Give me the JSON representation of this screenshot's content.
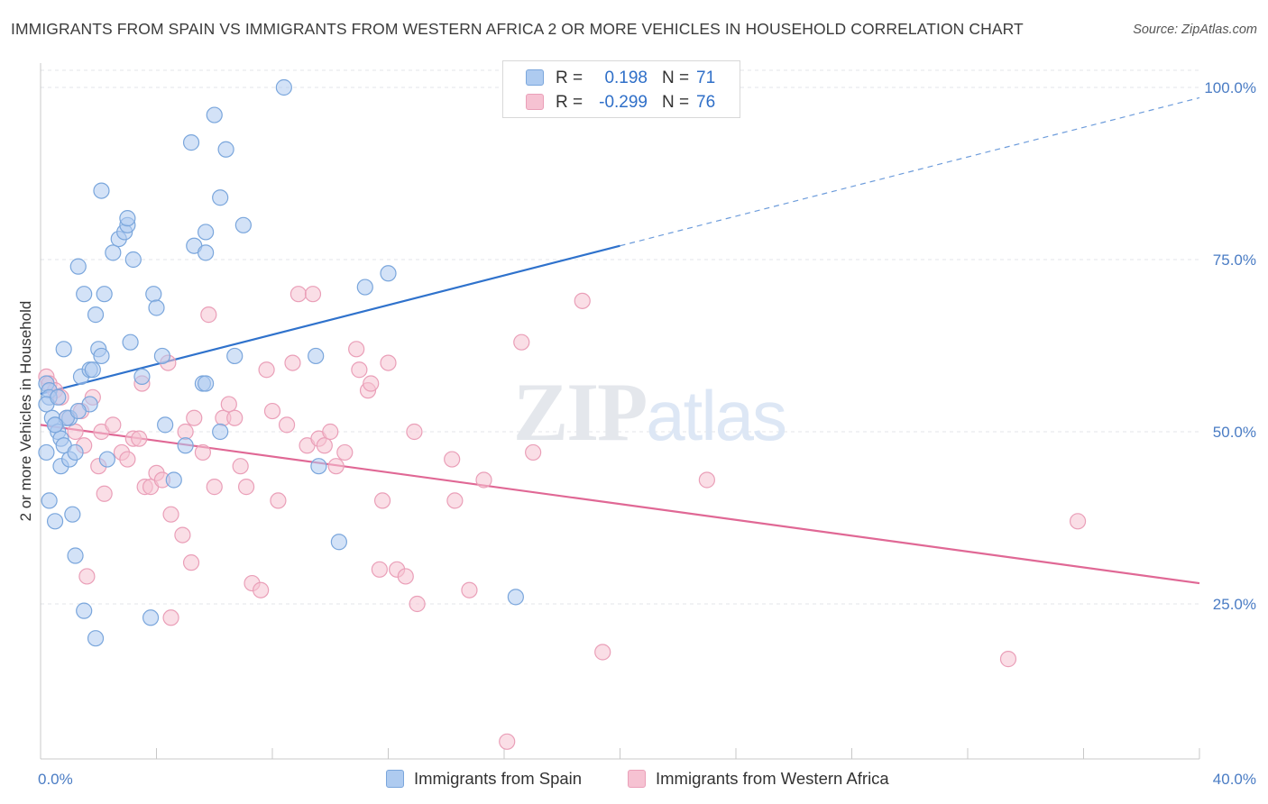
{
  "title": "IMMIGRANTS FROM SPAIN VS IMMIGRANTS FROM WESTERN AFRICA 2 OR MORE VEHICLES IN HOUSEHOLD CORRELATION CHART",
  "source": "Source: ZipAtlas.com",
  "watermark": "ZIPatlas",
  "legend_top": {
    "rows": [
      {
        "r_label": "R =",
        "r_value": "0.198",
        "n_label": "N =",
        "n_value": "71"
      },
      {
        "r_label": "R =",
        "r_value": "-0.299",
        "n_label": "N =",
        "n_value": "76"
      }
    ]
  },
  "legend_bottom": {
    "spain": "Immigrants from Spain",
    "wafrica": "Immigrants from Western Africa"
  },
  "colors": {
    "spain_fill": "#aecbf0",
    "spain_stroke": "#7aa6dc",
    "spain_line": "#2f72cc",
    "wafrica_fill": "#f6c2d2",
    "wafrica_stroke": "#ea9fb8",
    "wafrica_line": "#e06895",
    "axis_text": "#4a7cc4"
  },
  "chart_data": {
    "type": "scatter",
    "ylabel": "2 or more Vehicles in Household",
    "xlim": [
      0,
      40
    ],
    "ylim": [
      0,
      105
    ],
    "x_tick_labels": [
      {
        "x": 0,
        "label": "0.0%"
      },
      {
        "x": 40,
        "label": "40.0%"
      }
    ],
    "y_tick_labels": [
      {
        "y": 25,
        "label": "25.0%"
      },
      {
        "y": 50,
        "label": "50.0%"
      },
      {
        "y": 75,
        "label": "75.0%"
      },
      {
        "y": 100,
        "label": "100.0%"
      }
    ],
    "grid": true,
    "series": [
      {
        "name": "Immigrants from Spain",
        "r": 0.198,
        "n": 71,
        "trend": {
          "x0": 0,
          "y0": 55.5,
          "x1": 20,
          "y1": 77.0,
          "x_dash_end": 40,
          "y_dash_end": 98.5
        },
        "points": [
          [
            0.2,
            57
          ],
          [
            0.3,
            56
          ],
          [
            0.3,
            55
          ],
          [
            0.2,
            54
          ],
          [
            0.4,
            52
          ],
          [
            0.5,
            51
          ],
          [
            0.6,
            50
          ],
          [
            0.7,
            49
          ],
          [
            0.2,
            47
          ],
          [
            0.3,
            40
          ],
          [
            0.5,
            37
          ],
          [
            0.7,
            45
          ],
          [
            0.8,
            48
          ],
          [
            1.0,
            46
          ],
          [
            1.1,
            38
          ],
          [
            1.2,
            32
          ],
          [
            1.5,
            24
          ],
          [
            1.9,
            20
          ],
          [
            0.8,
            62
          ],
          [
            1.4,
            58
          ],
          [
            1.7,
            59
          ],
          [
            1.8,
            59
          ],
          [
            2.0,
            62
          ],
          [
            2.1,
            61
          ],
          [
            1.3,
            74
          ],
          [
            1.5,
            70
          ],
          [
            1.9,
            67
          ],
          [
            2.2,
            70
          ],
          [
            2.1,
            85
          ],
          [
            2.5,
            76
          ],
          [
            2.7,
            78
          ],
          [
            2.9,
            79
          ],
          [
            3.0,
            80
          ],
          [
            3.0,
            81
          ],
          [
            3.2,
            75
          ],
          [
            3.1,
            63
          ],
          [
            3.5,
            58
          ],
          [
            3.9,
            70
          ],
          [
            4.0,
            68
          ],
          [
            4.2,
            61
          ],
          [
            4.3,
            51
          ],
          [
            4.6,
            43
          ],
          [
            5.2,
            92
          ],
          [
            5.3,
            77
          ],
          [
            5.6,
            57
          ],
          [
            5.7,
            79
          ],
          [
            5.7,
            76
          ],
          [
            6.0,
            96
          ],
          [
            6.2,
            84
          ],
          [
            6.4,
            91
          ],
          [
            6.7,
            61
          ],
          [
            7.0,
            80
          ],
          [
            6.2,
            50
          ],
          [
            5.7,
            57
          ],
          [
            5.0,
            48
          ],
          [
            8.4,
            100
          ],
          [
            9.5,
            61
          ],
          [
            9.6,
            45
          ],
          [
            10.3,
            34
          ],
          [
            11.2,
            71
          ],
          [
            12.0,
            73
          ],
          [
            16.4,
            26
          ],
          [
            3.8,
            23
          ],
          [
            1.2,
            47
          ],
          [
            1.7,
            54
          ],
          [
            1.0,
            52
          ],
          [
            2.3,
            46
          ],
          [
            0.9,
            52
          ],
          [
            1.3,
            53
          ],
          [
            0.6,
            55
          ],
          [
            0.5,
            51
          ]
        ]
      },
      {
        "name": "Immigrants from Western Africa",
        "r": -0.299,
        "n": 76,
        "trend": {
          "x0": 0,
          "y0": 51.0,
          "x1": 40,
          "y1": 28.0
        },
        "points": [
          [
            0.2,
            58
          ],
          [
            0.3,
            57
          ],
          [
            0.5,
            56
          ],
          [
            0.7,
            55
          ],
          [
            0.9,
            52
          ],
          [
            1.2,
            50
          ],
          [
            1.4,
            53
          ],
          [
            1.5,
            48
          ],
          [
            1.8,
            55
          ],
          [
            2.0,
            45
          ],
          [
            2.1,
            50
          ],
          [
            2.5,
            51
          ],
          [
            2.8,
            47
          ],
          [
            3.0,
            46
          ],
          [
            3.2,
            49
          ],
          [
            3.4,
            49
          ],
          [
            3.5,
            57
          ],
          [
            3.6,
            42
          ],
          [
            3.8,
            42
          ],
          [
            4.0,
            44
          ],
          [
            4.2,
            43
          ],
          [
            4.4,
            60
          ],
          [
            4.5,
            38
          ],
          [
            4.9,
            35
          ],
          [
            5.0,
            50
          ],
          [
            5.2,
            31
          ],
          [
            5.3,
            52
          ],
          [
            5.6,
            47
          ],
          [
            5.8,
            67
          ],
          [
            6.0,
            42
          ],
          [
            6.3,
            52
          ],
          [
            6.5,
            54
          ],
          [
            6.7,
            52
          ],
          [
            6.9,
            45
          ],
          [
            7.1,
            42
          ],
          [
            7.3,
            28
          ],
          [
            7.6,
            27
          ],
          [
            7.8,
            59
          ],
          [
            8.0,
            53
          ],
          [
            8.2,
            40
          ],
          [
            8.5,
            51
          ],
          [
            8.7,
            60
          ],
          [
            8.9,
            70
          ],
          [
            9.2,
            48
          ],
          [
            9.4,
            70
          ],
          [
            9.6,
            49
          ],
          [
            9.8,
            48
          ],
          [
            10.0,
            50
          ],
          [
            10.2,
            45
          ],
          [
            10.5,
            47
          ],
          [
            10.9,
            62
          ],
          [
            11.0,
            59
          ],
          [
            11.3,
            56
          ],
          [
            11.4,
            57
          ],
          [
            11.7,
            30
          ],
          [
            11.8,
            40
          ],
          [
            12.0,
            60
          ],
          [
            12.3,
            30
          ],
          [
            12.6,
            29
          ],
          [
            12.9,
            50
          ],
          [
            13.0,
            25
          ],
          [
            14.2,
            46
          ],
          [
            14.3,
            40
          ],
          [
            14.8,
            27
          ],
          [
            15.3,
            43
          ],
          [
            16.1,
            5
          ],
          [
            16.6,
            63
          ],
          [
            17.0,
            47
          ],
          [
            18.7,
            69
          ],
          [
            19.4,
            18
          ],
          [
            23.0,
            43
          ],
          [
            33.4,
            17
          ],
          [
            35.8,
            37
          ],
          [
            1.6,
            29
          ],
          [
            4.5,
            23
          ],
          [
            2.2,
            41
          ]
        ]
      }
    ]
  }
}
